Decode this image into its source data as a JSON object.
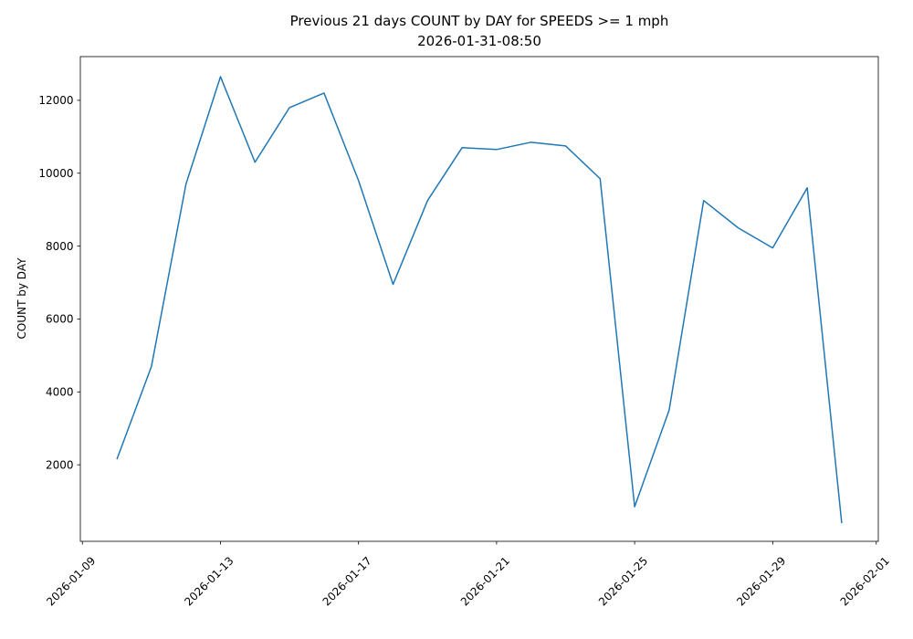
{
  "chart_data": {
    "type": "line",
    "title": "Previous 21 days COUNT by DAY for SPEEDS >= 1 mph",
    "subtitle": "2026-01-31-08:50",
    "xlabel": "",
    "ylabel": "COUNT by DAY",
    "grid": false,
    "legend": false,
    "line_color": "#1f77b4",
    "line_width": 1.5,
    "axis_color": "#000000",
    "background": "#ffffff",
    "x": [
      "2026-01-10",
      "2026-01-11",
      "2026-01-12",
      "2026-01-13",
      "2026-01-14",
      "2026-01-15",
      "2026-01-16",
      "2026-01-17",
      "2026-01-18",
      "2026-01-19",
      "2026-01-20",
      "2026-01-21",
      "2026-01-22",
      "2026-01-23",
      "2026-01-24",
      "2026-01-25",
      "2026-01-26",
      "2026-01-27",
      "2026-01-28",
      "2026-01-29",
      "2026-01-30",
      "2026-01-31"
    ],
    "values": [
      2150,
      4700,
      9700,
      12650,
      10300,
      11800,
      12200,
      9800,
      6950,
      9250,
      10700,
      10650,
      10850,
      10750,
      9850,
      850,
      3500,
      9250,
      8500,
      7950,
      9600,
      400
    ],
    "x_tick_labels": [
      "2026-01-09",
      "2026-01-13",
      "2026-01-17",
      "2026-01-21",
      "2026-01-25",
      "2026-01-29",
      "2026-02-01"
    ],
    "x_tick_rotation": 45,
    "y_ticks": [
      2000,
      4000,
      6000,
      8000,
      10000,
      12000
    ],
    "ylim": [
      -100,
      13200
    ],
    "xlim_days": [
      -0.06,
      23.06
    ]
  }
}
